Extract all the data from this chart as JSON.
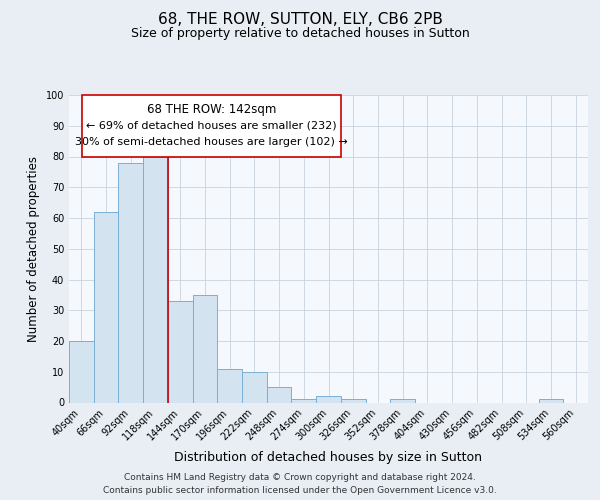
{
  "title": "68, THE ROW, SUTTON, ELY, CB6 2PB",
  "subtitle": "Size of property relative to detached houses in Sutton",
  "xlabel": "Distribution of detached houses by size in Sutton",
  "ylabel": "Number of detached properties",
  "bar_labels": [
    "40sqm",
    "66sqm",
    "92sqm",
    "118sqm",
    "144sqm",
    "170sqm",
    "196sqm",
    "222sqm",
    "248sqm",
    "274sqm",
    "300sqm",
    "326sqm",
    "352sqm",
    "378sqm",
    "404sqm",
    "430sqm",
    "456sqm",
    "482sqm",
    "508sqm",
    "534sqm",
    "560sqm"
  ],
  "bar_values": [
    20,
    62,
    78,
    80,
    33,
    35,
    11,
    10,
    5,
    1,
    2,
    1,
    0,
    1,
    0,
    0,
    0,
    0,
    0,
    1,
    0
  ],
  "bar_color": "#d4e3f0",
  "bar_edge_color": "#7aafd4",
  "vline_color": "#cc0000",
  "vline_pos": 3.5,
  "annotation_line1": "68 THE ROW: 142sqm",
  "annotation_line2": "← 69% of detached houses are smaller (232)",
  "annotation_line3": "30% of semi-detached houses are larger (102) →",
  "ylim": [
    0,
    100
  ],
  "yticks": [
    0,
    10,
    20,
    30,
    40,
    50,
    60,
    70,
    80,
    90,
    100
  ],
  "background_color": "#e8eef4",
  "plot_bg_color": "#f5f8fc",
  "grid_color": "#c8d4e0",
  "footer_line1": "Contains HM Land Registry data © Crown copyright and database right 2024.",
  "footer_line2": "Contains public sector information licensed under the Open Government Licence v3.0.",
  "title_fontsize": 11,
  "subtitle_fontsize": 9,
  "xlabel_fontsize": 9,
  "ylabel_fontsize": 8.5,
  "tick_fontsize": 7,
  "footer_fontsize": 6.5,
  "annotation_fontsize": 8.5
}
